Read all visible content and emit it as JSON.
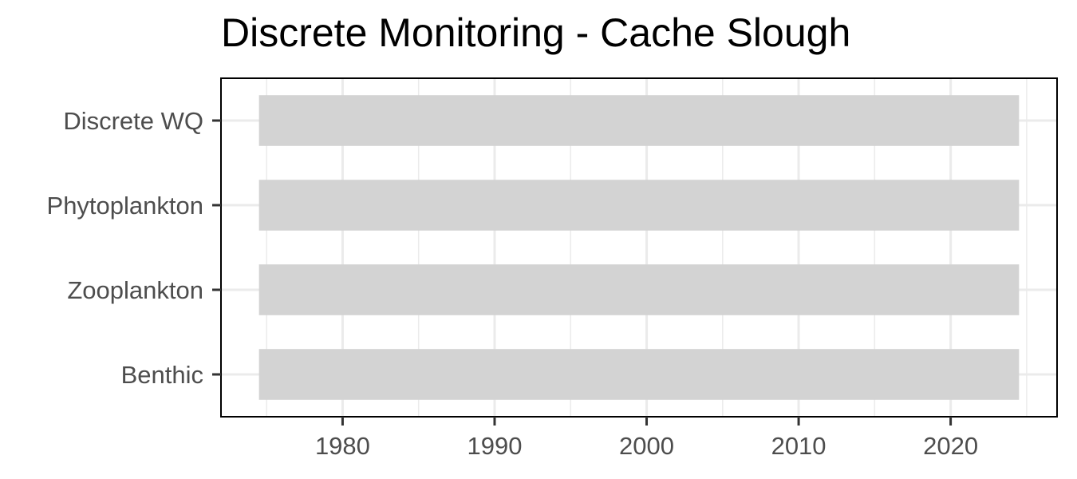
{
  "chart_data": {
    "type": "bar",
    "orientation": "horizontal",
    "title": "Discrete Monitoring - Cache Slough",
    "xlabel": "",
    "ylabel": "",
    "categories": [
      "Discrete WQ",
      "Phytoplankton",
      "Zooplankton",
      "Benthic"
    ],
    "series": [
      {
        "values": [
          {
            "start": 1974.5,
            "end": 2024.5
          },
          {
            "start": 1974.5,
            "end": 2024.5
          },
          {
            "start": 1974.5,
            "end": 2024.5
          },
          {
            "start": 1974.5,
            "end": 2024.5
          }
        ]
      }
    ],
    "xlim": [
      1972,
      2027
    ],
    "xticks": [
      1980,
      1990,
      2000,
      2010,
      2020
    ],
    "xtick_labels": [
      "1980",
      "1990",
      "2000",
      "2010",
      "2020"
    ],
    "grid": true,
    "legend": "none",
    "colors": {
      "bar": "#d3d3d3",
      "grid": "#ebebeb",
      "panel_border": "#000000",
      "tick_text": "#4d4d4d",
      "title": "#000000"
    }
  }
}
